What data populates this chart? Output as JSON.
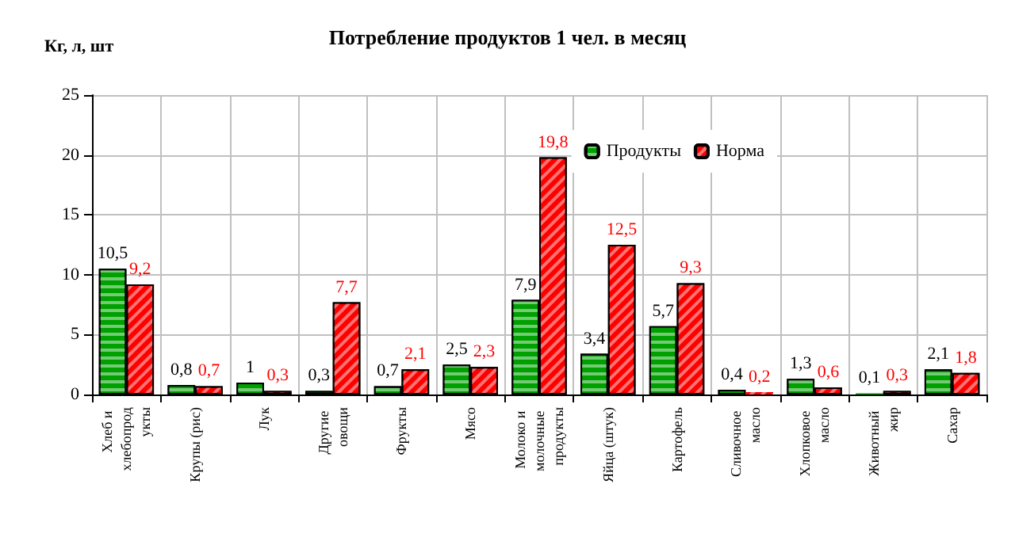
{
  "chart_data": {
    "type": "bar",
    "title": "Потребление продуктов 1 чел. в месяц",
    "ylabel": "Кг, л, шт",
    "categories": [
      "Хлеб и хлебопродукты",
      "Крупы (рис)",
      "Лук",
      "Другие овощи",
      "Фрукты",
      "Мясо",
      "Молоко и молочные продукты",
      "Яйца (штук)",
      "Картофель",
      "Сливочное масло",
      "Хлопковое масло",
      "Животный жир",
      "Сахар"
    ],
    "series": [
      {
        "name": "Продукты",
        "color": "#00a000",
        "values": [
          10.5,
          0.8,
          1,
          0.3,
          0.7,
          2.5,
          7.9,
          3.4,
          5.7,
          0.4,
          1.3,
          0.1,
          2.1
        ],
        "value_labels": [
          "10,5",
          "0,8",
          "1",
          "0,3",
          "0,7",
          "2,5",
          "7,9",
          "3,4",
          "5,7",
          "0,4",
          "1,3",
          "0,1",
          "2,1"
        ]
      },
      {
        "name": "Норма",
        "color": "#ff0000",
        "values": [
          9.2,
          0.7,
          0.3,
          7.7,
          2.1,
          2.3,
          19.8,
          12.5,
          9.3,
          0.2,
          0.6,
          0.3,
          1.8
        ],
        "value_labels": [
          "9,2",
          "0,7",
          "0,3",
          "7,7",
          "2,1",
          "2,3",
          "19,8",
          "12,5",
          "9,3",
          "0,2",
          "0,6",
          "0,3",
          "1,8"
        ]
      }
    ],
    "ylim": [
      0,
      25
    ],
    "yticks": [
      0,
      5,
      10,
      15,
      20,
      25
    ],
    "grid": true,
    "legend": "top right"
  }
}
